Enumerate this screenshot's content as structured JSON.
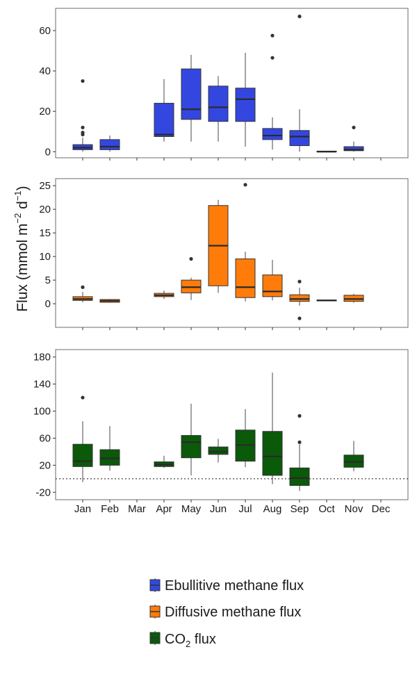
{
  "chart_data": {
    "type": "box",
    "ylabel": {
      "prefix": "Flux (mmol m",
      "sup1": "−2",
      "mid": " d",
      "sup2": "−1",
      "suffix": ")"
    },
    "categories": [
      "Jan",
      "Feb",
      "Mar",
      "Apr",
      "May",
      "Jun",
      "Jul",
      "Aug",
      "Sep",
      "Oct",
      "Nov",
      "Dec"
    ],
    "panels": [
      {
        "name": "Ebullitive methane flux",
        "color": "#3347e0",
        "ylim": [
          -3,
          71
        ],
        "yticks": [
          0,
          20,
          40,
          60
        ],
        "boxes": [
          {
            "month": "Jan",
            "whisker_low": 0,
            "q1": 1,
            "median": 2,
            "q3": 3.5,
            "whisker_high": 7,
            "outliers": [
              8.5,
              9.5,
              12,
              35
            ]
          },
          {
            "month": "Feb",
            "whisker_low": 0,
            "q1": 1,
            "median": 2.5,
            "q3": 6,
            "whisker_high": 8,
            "outliers": []
          },
          {
            "month": "Apr",
            "whisker_low": 5,
            "q1": 7.5,
            "median": 8.5,
            "q3": 24,
            "whisker_high": 36,
            "outliers": []
          },
          {
            "month": "May",
            "whisker_low": 5,
            "q1": 16,
            "median": 21,
            "q3": 41,
            "whisker_high": 48,
            "outliers": []
          },
          {
            "month": "Jun",
            "whisker_low": 5,
            "q1": 15,
            "median": 22,
            "q3": 32.5,
            "whisker_high": 37.5,
            "outliers": []
          },
          {
            "month": "Jul",
            "whisker_low": 2.5,
            "q1": 15,
            "median": 26,
            "q3": 31.5,
            "whisker_high": 49,
            "outliers": []
          },
          {
            "month": "Aug",
            "whisker_low": 1,
            "q1": 6,
            "median": 8,
            "q3": 11.5,
            "whisker_high": 17,
            "outliers": [
              46.5,
              57.5
            ]
          },
          {
            "month": "Sep",
            "whisker_low": 0,
            "q1": 3,
            "median": 7.5,
            "q3": 10.5,
            "whisker_high": 21,
            "outliers": [
              67
            ]
          },
          {
            "month": "Oct",
            "whisker_low": 0,
            "q1": 0,
            "median": 0,
            "q3": 0.3,
            "whisker_high": 0.3,
            "outliers": []
          },
          {
            "month": "Nov",
            "whisker_low": 0,
            "q1": 0.5,
            "median": 1,
            "q3": 2.5,
            "whisker_high": 5,
            "outliers": [
              12
            ]
          }
        ]
      },
      {
        "name": "Diffusive methane flux",
        "color": "#ff7c0a",
        "ylim": [
          -5,
          26.5
        ],
        "yticks": [
          0,
          5,
          10,
          15,
          20,
          25
        ],
        "boxes": [
          {
            "month": "Jan",
            "whisker_low": 0.3,
            "q1": 0.7,
            "median": 1,
            "q3": 1.5,
            "whisker_high": 2.5,
            "outliers": [
              3.5
            ]
          },
          {
            "month": "Feb",
            "whisker_low": 0.2,
            "q1": 0.3,
            "median": 0.6,
            "q3": 0.9,
            "whisker_high": 1,
            "outliers": []
          },
          {
            "month": "Apr",
            "whisker_low": 1,
            "q1": 1.5,
            "median": 1.8,
            "q3": 2.2,
            "whisker_high": 2.8,
            "outliers": []
          },
          {
            "month": "May",
            "whisker_low": 0.8,
            "q1": 2.3,
            "median": 3.5,
            "q3": 5,
            "whisker_high": 5.5,
            "outliers": [
              9.5
            ]
          },
          {
            "month": "Jun",
            "whisker_low": 2.3,
            "q1": 3.8,
            "median": 12.3,
            "q3": 20.8,
            "whisker_high": 22,
            "outliers": []
          },
          {
            "month": "Jul",
            "whisker_low": 0.5,
            "q1": 1.3,
            "median": 3.5,
            "q3": 9.5,
            "whisker_high": 11,
            "outliers": [
              25.2
            ]
          },
          {
            "month": "Aug",
            "whisker_low": 0.7,
            "q1": 1.5,
            "median": 2.6,
            "q3": 6.1,
            "whisker_high": 9.3,
            "outliers": []
          },
          {
            "month": "Sep",
            "whisker_low": -0.4,
            "q1": 0.5,
            "median": 1,
            "q3": 1.9,
            "whisker_high": 3.4,
            "outliers": [
              4.7,
              -3.1
            ]
          },
          {
            "month": "Oct",
            "whisker_low": 0.6,
            "q1": 0.6,
            "median": 0.7,
            "q3": 0.8,
            "whisker_high": 0.8,
            "outliers": []
          },
          {
            "month": "Nov",
            "whisker_low": 0.2,
            "q1": 0.5,
            "median": 1,
            "q3": 1.8,
            "whisker_high": 2.1,
            "outliers": []
          }
        ]
      },
      {
        "name": "CO2 flux",
        "color": "#0a5a0a",
        "ylim": [
          -31,
          191
        ],
        "yticks": [
          -20,
          20,
          60,
          100,
          140,
          180
        ],
        "yticklabels": [
          "-20",
          "20",
          "60",
          "100",
          "140",
          "180"
        ],
        "reference_line": 0,
        "boxes": [
          {
            "month": "Jan",
            "whisker_low": -5,
            "q1": 18,
            "median": 26,
            "q3": 51,
            "whisker_high": 85,
            "outliers": [
              120
            ]
          },
          {
            "month": "Feb",
            "whisker_low": 12,
            "q1": 20,
            "median": 30,
            "q3": 43,
            "whisker_high": 78,
            "outliers": []
          },
          {
            "month": "Apr",
            "whisker_low": 16,
            "q1": 18,
            "median": 21,
            "q3": 25,
            "whisker_high": 34,
            "outliers": []
          },
          {
            "month": "May",
            "whisker_low": 5,
            "q1": 31,
            "median": 54,
            "q3": 64,
            "whisker_high": 111,
            "outliers": []
          },
          {
            "month": "Jun",
            "whisker_low": 24,
            "q1": 36,
            "median": 40,
            "q3": 47,
            "whisker_high": 59,
            "outliers": []
          },
          {
            "month": "Jul",
            "whisker_low": 17,
            "q1": 26,
            "median": 50,
            "q3": 72,
            "whisker_high": 103,
            "outliers": []
          },
          {
            "month": "Aug",
            "whisker_low": -8,
            "q1": 5,
            "median": 33,
            "q3": 70,
            "whisker_high": 157,
            "outliers": []
          },
          {
            "month": "Sep",
            "whisker_low": -18,
            "q1": -10,
            "median": 1,
            "q3": 16,
            "whisker_high": 51,
            "outliers": [
              54,
              93
            ]
          },
          {
            "month": "Nov",
            "whisker_low": 11,
            "q1": 17,
            "median": 25,
            "q3": 35,
            "whisker_high": 56,
            "outliers": []
          }
        ]
      }
    ],
    "legend": {
      "position": "bottom-center",
      "items": [
        {
          "label": "Ebullitive methane flux",
          "color": "#3347e0"
        },
        {
          "label": "Diffusive methane flux",
          "color": "#ff7c0a"
        },
        {
          "prefix": "CO",
          "sub": "2",
          "suffix": " flux",
          "color": "#0a5a0a"
        }
      ]
    }
  }
}
